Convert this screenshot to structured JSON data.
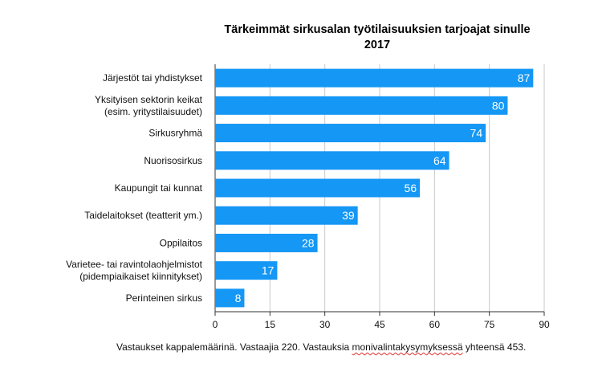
{
  "chart_data": {
    "type": "bar",
    "orientation": "horizontal",
    "title_lines": [
      "Tärkeimmät sirkusalan työtilaisuuksien tarjoajat sinulle",
      "2017"
    ],
    "categories": [
      [
        "Järjestöt tai yhdistykset"
      ],
      [
        "Yksityisen sektorin keikat",
        "(esim. yritystilaisuudet)"
      ],
      [
        "Sirkusryhmä"
      ],
      [
        "Nuorisosirkus"
      ],
      [
        "Kaupungit tai kunnat"
      ],
      [
        "Taidelaitokset (teatterit ym.)"
      ],
      [
        "Oppilaitos"
      ],
      [
        "Varietee- tai ravintolaohjelmistot",
        "(pidempiaikaiset kiinnitykset)"
      ],
      [
        "Perinteinen sirkus"
      ]
    ],
    "values": [
      87,
      80,
      74,
      64,
      56,
      39,
      28,
      17,
      8
    ],
    "data_labels": [
      "87",
      "80",
      "74",
      "64",
      "56",
      "39",
      "28",
      "17",
      "8"
    ],
    "xticks": [
      0,
      15,
      30,
      45,
      60,
      75,
      90
    ],
    "xtick_labels": [
      "0",
      "15",
      "30",
      "45",
      "60",
      "75",
      "90"
    ],
    "xlim": [
      0,
      90
    ],
    "grid": "vertical",
    "bar_color": "#1497f5"
  },
  "footnote": {
    "before": "Vastaukset kappalemäärinä. Vastaajia 220. Vastauksia ",
    "squiggle": "monivalintakysymyksessä",
    "after": " yhteensä 453."
  }
}
